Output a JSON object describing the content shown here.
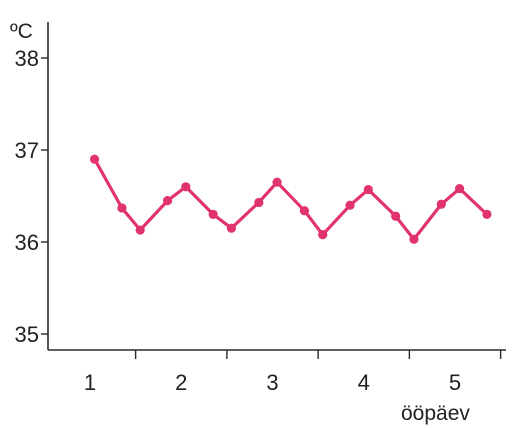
{
  "chart_data": {
    "type": "line",
    "title": "",
    "xlabel": "ööpäev",
    "ylabel": "ºC",
    "xlim": [
      0.6,
      5.5
    ],
    "ylim": [
      34.8,
      38.2
    ],
    "grid": false,
    "legend": "none",
    "x_ticks": [
      1,
      2,
      3,
      4,
      5
    ],
    "x_tick_labels": [
      "1",
      "2",
      "3",
      "4",
      "5"
    ],
    "y_ticks": [
      35,
      36,
      37,
      38
    ],
    "y_tick_labels": [
      "35",
      "36",
      "37",
      "38"
    ],
    "line_color": "#e0336f",
    "series": [
      {
        "x": [
          1.05,
          1.35,
          1.55,
          1.85,
          2.05,
          2.35,
          2.55,
          2.85,
          3.05,
          3.35,
          3.55,
          3.85,
          4.05,
          4.35,
          4.55,
          4.85,
          5.05,
          5.35
        ],
        "y": [
          36.9,
          36.37,
          36.13,
          36.45,
          36.6,
          36.3,
          36.15,
          36.43,
          36.65,
          36.34,
          36.08,
          36.4,
          36.57,
          36.28,
          36.03,
          36.41,
          36.58,
          36.3
        ]
      }
    ]
  }
}
